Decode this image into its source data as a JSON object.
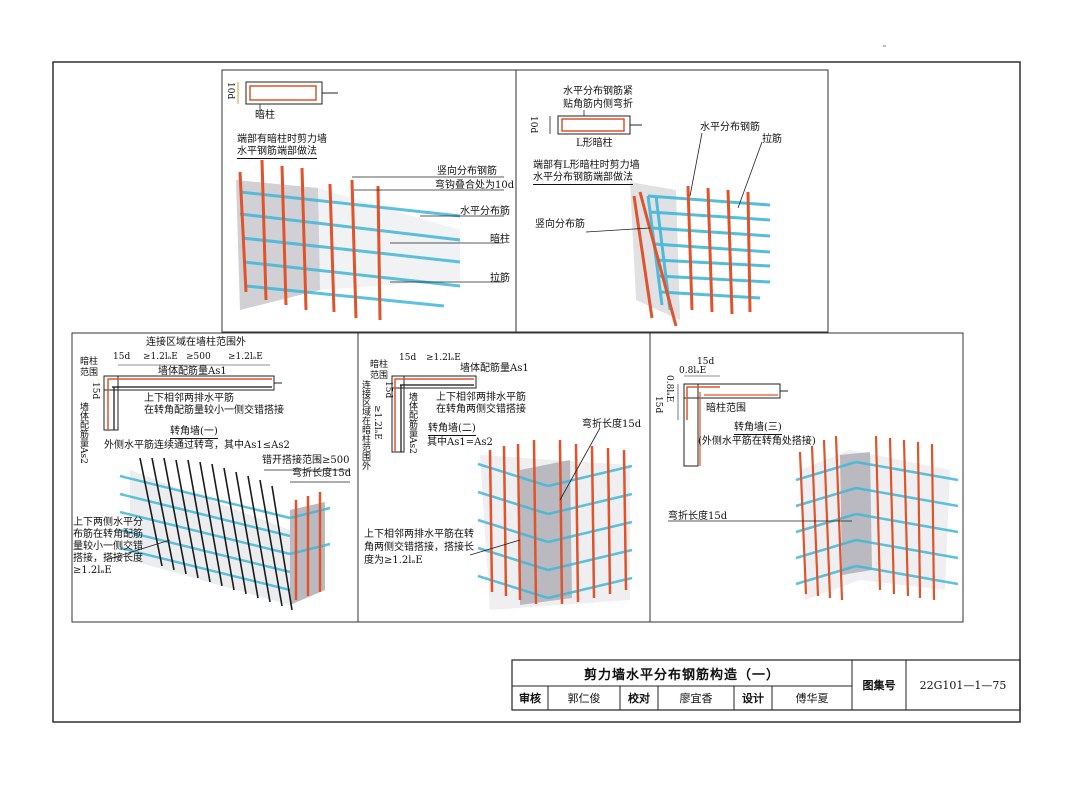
{
  "panel1": {
    "dim_10d": "10d",
    "column_label": "暗柱",
    "title_line1": "端部有暗柱时剪力墙",
    "title_line2": "水平钢筋端部做法",
    "vertical_bar": "竖向分布钢筋",
    "hook_overlap": "弯钩叠合处为10d",
    "horizontal_bar": "水平分布筋",
    "hidden_column": "暗柱",
    "tie_bar": "拉筋"
  },
  "panel2": {
    "note_line1": "水平分布钢筋紧",
    "note_line2": "贴角筋内侧弯折",
    "dim_10d": "10d",
    "l_column": "L形暗柱",
    "title_line1": "端部有L形暗柱时剪力墙",
    "title_line2": "水平分布钢筋端部做法",
    "horizontal_bar": "水平分布钢筋",
    "tie_bar": "拉筋",
    "vertical_bar": "竖向分布筋"
  },
  "panel3": {
    "zone_note": "连接区域在墙柱范围外",
    "hidden_col_range_1": "暗柱",
    "hidden_col_range_2": "范围",
    "dim_15d": "15d",
    "dim_12la_1": "≥1.2lₐE",
    "dim_500": "≥500",
    "dim_12la_2": "≥1.2lₐE",
    "as1": "墙体配筋量As1",
    "dim_15d_v": "15d",
    "as2": "墙体配筋量As2",
    "stagger_1": "上下相邻两排水平筋",
    "stagger_2": "在转角配筋量较小一侧交错搭接",
    "title": "转角墙(一)",
    "subtitle": "外侧水平筋连续通过转弯，其中As1≤As2",
    "stagger_range": "错开搭接范围≥500",
    "bend_len": "弯折长度15d",
    "lap_1": "上下两侧水平分",
    "lap_2": "布筋在转角配筋",
    "lap_3": "量较小一侧交错",
    "lap_4": "搭接，搭接长度",
    "lap_5": "≥1.2lₐE"
  },
  "panel4": {
    "hidden_col_range_1": "暗柱",
    "hidden_col_range_2": "范围",
    "dim_15d": "15d",
    "dim_12la": "≥1.2lₐE",
    "as1": "墙体配筋量As1",
    "dim_15d_v": "15d",
    "zone_v": "连接区域在暗柱范围外",
    "dim_12la_v": "≥1.2lₐE",
    "as2": "墙体配筋量As2",
    "stagger_1": "上下相邻两排水平筋",
    "stagger_2": "在转角两侧交错搭接",
    "title": "转角墙(二)",
    "subtitle": "其中As1=As2",
    "bend_len": "弯折长度15d",
    "lap_1": "上下相邻两排水平筋在转",
    "lap_2": "角两侧交错搭接，搭接长",
    "lap_3": "度为≥1.2lₐE"
  },
  "panel5": {
    "dim_08la": "0.8lₐE",
    "dim_15d": "15d",
    "dim_08la_v": "0.8lₐE",
    "dim_15d_v": "15d",
    "hidden_col_range": "暗柱范围",
    "title": "转角墙(三)",
    "subtitle": "(外侧水平筋在转角处搭接)",
    "bend_len": "弯折长度15d"
  },
  "title_block": {
    "drawing_title": "剪力墙水平分布钢筋构造（一）",
    "atlas_label": "图集号",
    "atlas_no": "22G101—1—75",
    "review_label": "审核",
    "reviewer": "郭仁俊",
    "check_label": "校对",
    "checker": "廖宜香",
    "design_label": "设计",
    "designer": "傅华夏"
  },
  "colors": {
    "rebar_vertical": "#e0532b",
    "rebar_horizontal": "#3fb7d9",
    "rebar_black": "#1a1a1a",
    "concrete": "#a9a9b3"
  }
}
